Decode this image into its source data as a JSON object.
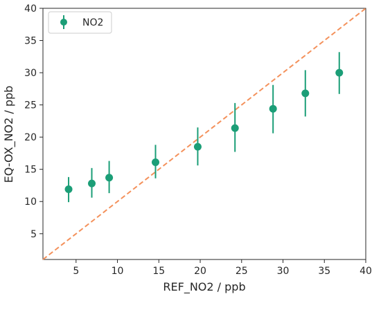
{
  "chart_data": {
    "type": "scatter",
    "title": "",
    "xlabel": "REF_NO2 / ppb",
    "ylabel": "EQ-OX_NO2 / ppb",
    "xlim": [
      1,
      40
    ],
    "ylim": [
      1,
      40
    ],
    "xticks": [
      "5",
      "10",
      "15",
      "20",
      "25",
      "30",
      "35",
      "40"
    ],
    "yticks": [
      "5",
      "10",
      "15",
      "20",
      "25",
      "30",
      "35",
      "40"
    ],
    "grid": false,
    "legend_position": "top-left",
    "series": [
      {
        "name": "NO2",
        "color": "#1b9e77",
        "x": [
          4.1,
          6.9,
          9.0,
          14.6,
          19.7,
          24.2,
          28.8,
          32.7,
          36.8
        ],
        "y": [
          11.9,
          12.8,
          13.7,
          16.1,
          18.5,
          21.4,
          24.4,
          26.8,
          30.0
        ],
        "err_low": [
          9.9,
          10.6,
          11.3,
          13.6,
          15.6,
          17.7,
          20.6,
          23.2,
          26.7
        ],
        "err_high": [
          13.8,
          15.2,
          16.3,
          18.8,
          21.5,
          25.3,
          28.1,
          30.4,
          33.2
        ]
      }
    ],
    "reference_line": {
      "style": "dashed",
      "color": "#f4915b",
      "from": [
        1,
        1
      ],
      "to": [
        40,
        40
      ]
    }
  }
}
